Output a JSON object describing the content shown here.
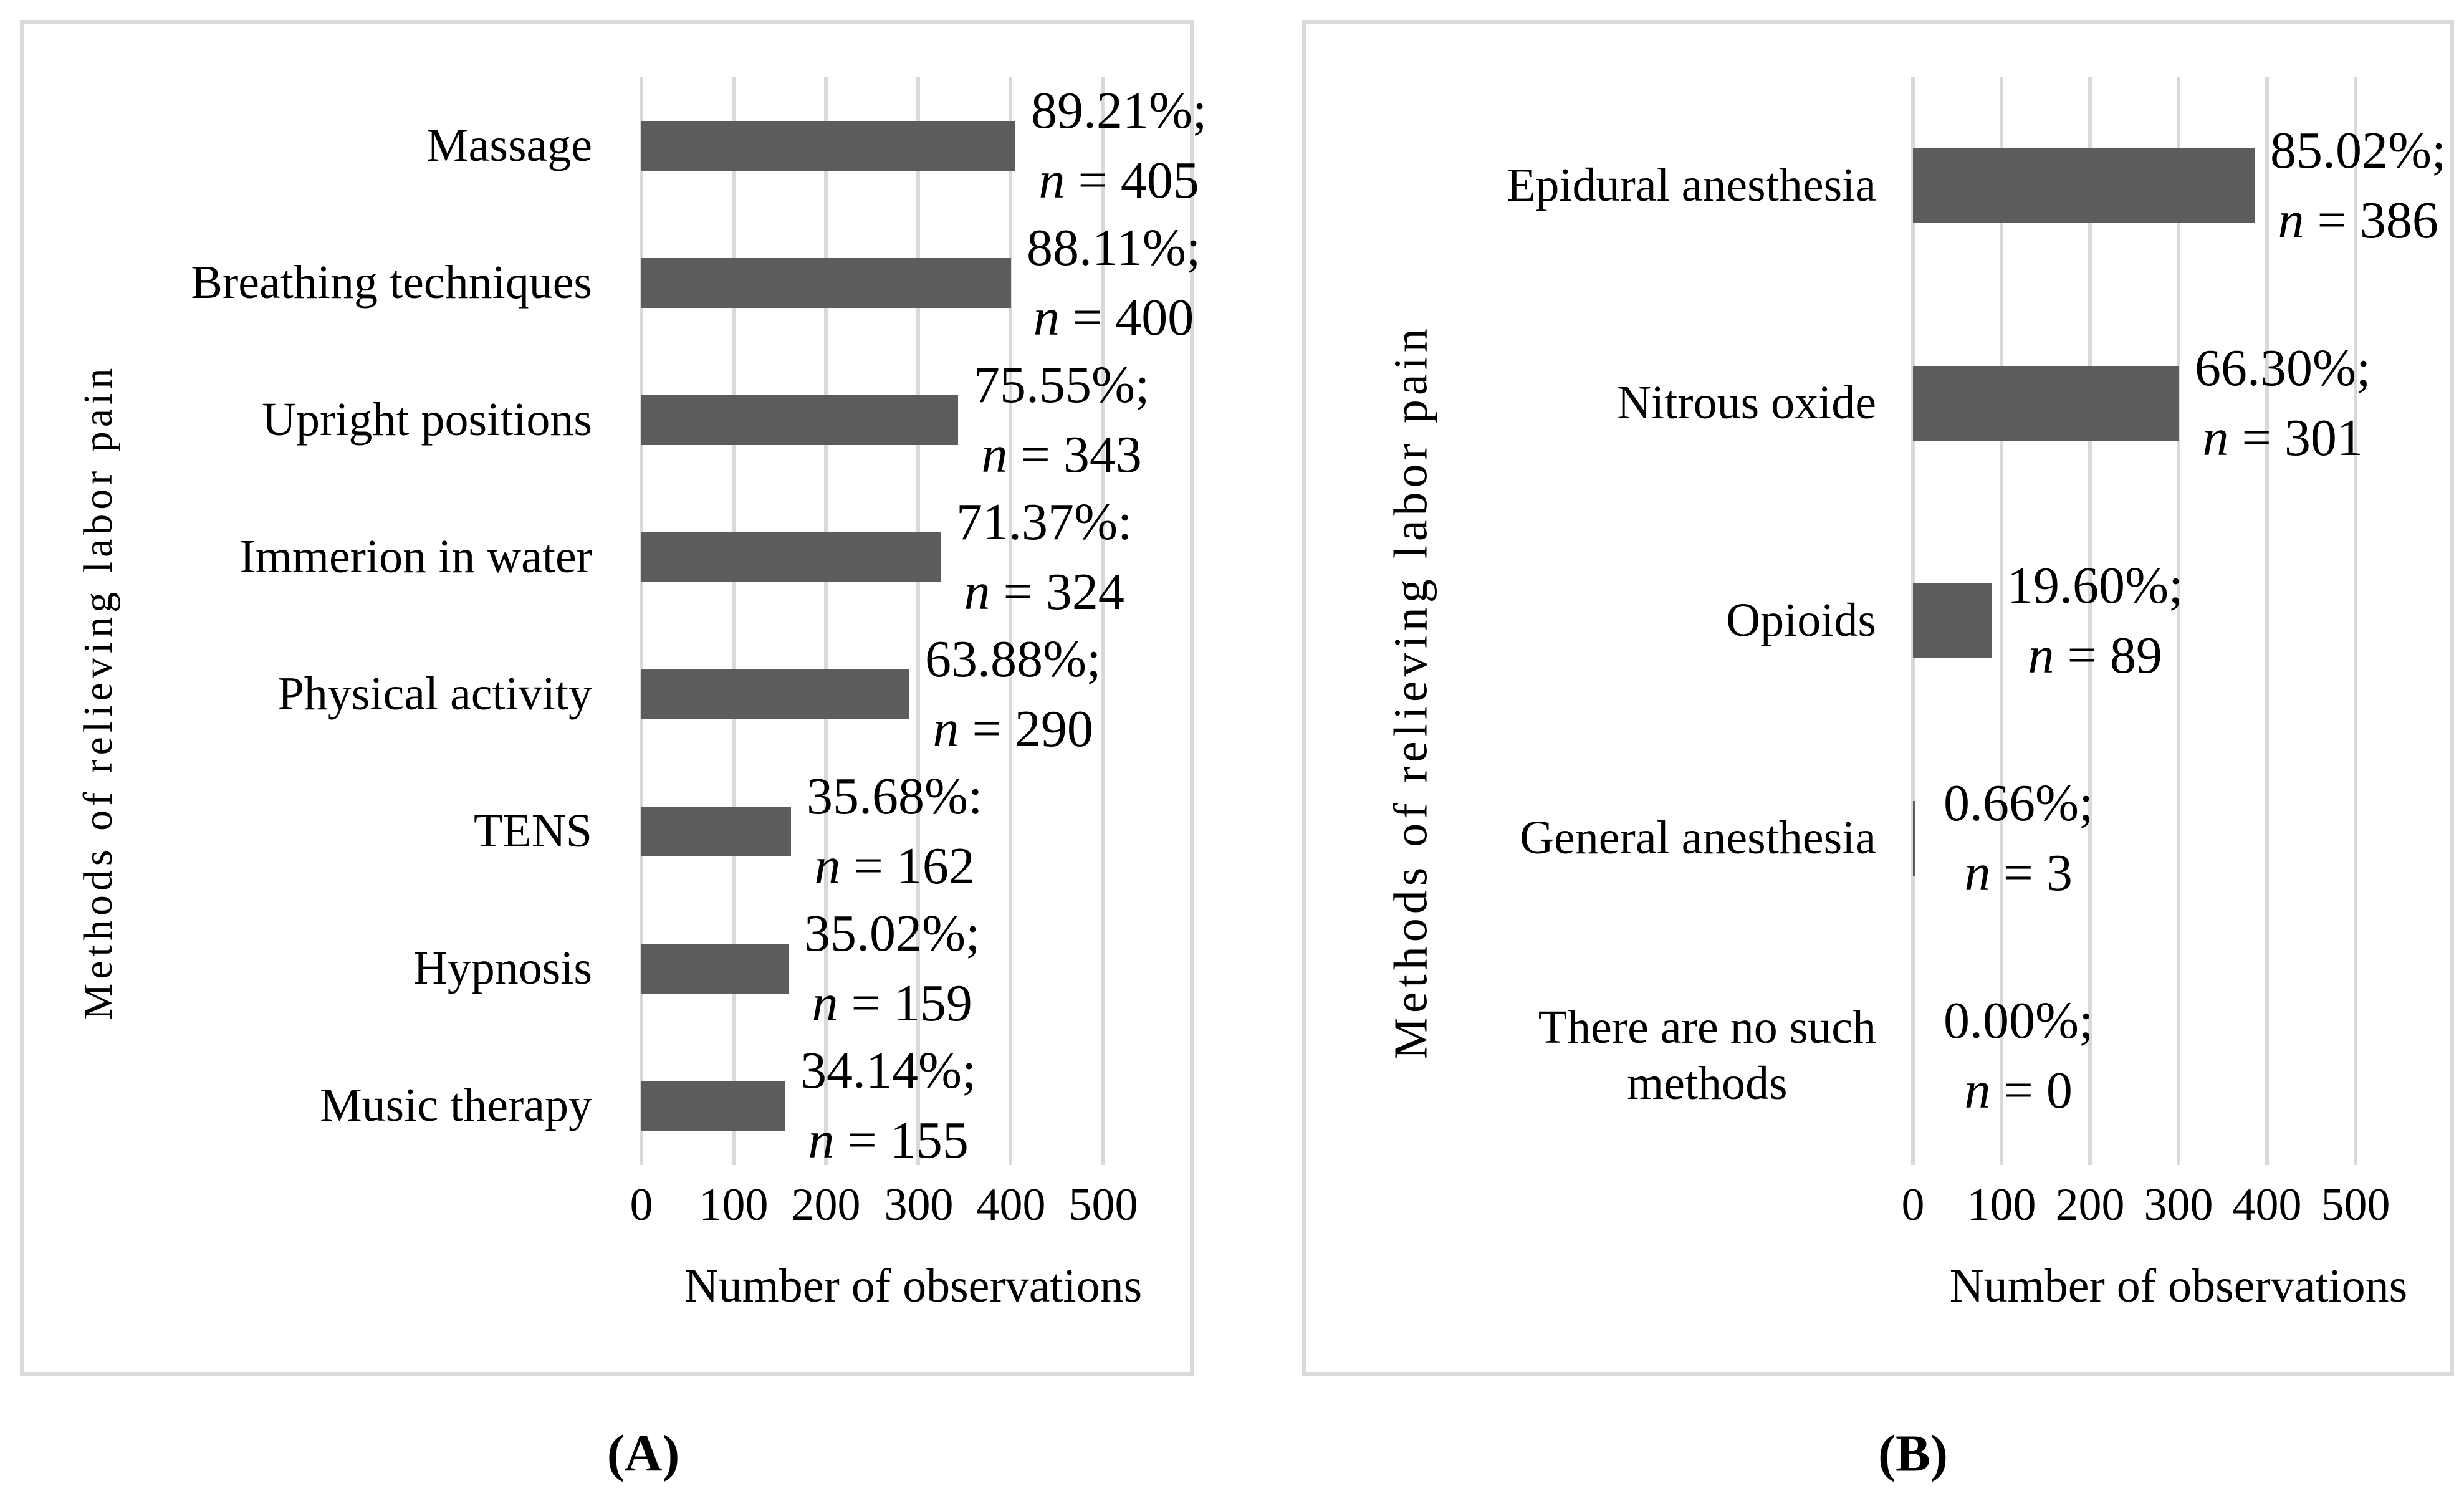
{
  "figure": {
    "captions": {
      "a": "(A)",
      "b": "(B)"
    }
  },
  "chart_data": [
    {
      "id": "A",
      "type": "bar",
      "orientation": "horizontal",
      "xlabel": "Number of observations",
      "ylabel": "Methods of relieving labor pain",
      "xlim": [
        0,
        500
      ],
      "xticks": [
        "0",
        "100",
        "200",
        "300",
        "400",
        "500"
      ],
      "grid": "vertical",
      "legend": "none",
      "bar_color": "#5c5c5c",
      "gridline_color": "#d9d9d9",
      "categories": [
        "Massage",
        "Breathing techniques",
        "Upright positions",
        "Immerion in water",
        "Physical activity",
        "TENS",
        "Hypnosis",
        "Music therapy"
      ],
      "values": [
        405,
        400,
        343,
        324,
        290,
        162,
        159,
        155
      ],
      "rows": [
        {
          "category": "Massage",
          "n": 405,
          "pct": "89.21%;",
          "n_italic": "n",
          "n_rest": " = 405"
        },
        {
          "category": "Breathing techniques",
          "n": 400,
          "pct": "88.11%;",
          "n_italic": "n",
          "n_rest": " = 400"
        },
        {
          "category": "Upright positions",
          "n": 343,
          "pct": "75.55%;",
          "n_italic": "n",
          "n_rest": " = 343"
        },
        {
          "category": "Immerion in water",
          "n": 324,
          "pct": "71.37%:",
          "n_italic": "n",
          "n_rest": " = 324"
        },
        {
          "category": "Physical activity",
          "n": 290,
          "pct": "63.88%;",
          "n_italic": "n",
          "n_rest": " = 290"
        },
        {
          "category": "TENS",
          "n": 162,
          "pct": "35.68%:",
          "n_italic": "n",
          "n_rest": " = 162"
        },
        {
          "category": "Hypnosis",
          "n": 159,
          "pct": "35.02%;",
          "n_italic": "n",
          "n_rest": " = 159"
        },
        {
          "category": "Music therapy",
          "n": 155,
          "pct": "34.14%;",
          "n_italic": "n",
          "n_rest": " = 155"
        }
      ]
    },
    {
      "id": "B",
      "type": "bar",
      "orientation": "horizontal",
      "xlabel": "Number of observations",
      "ylabel": "Methods of relieving labor pain",
      "xlim": [
        0,
        500
      ],
      "xticks": [
        "0",
        "100",
        "200",
        "300",
        "400",
        "500"
      ],
      "grid": "vertical",
      "legend": "none",
      "bar_color": "#5c5c5c",
      "gridline_color": "#d9d9d9",
      "categories": [
        "Epidural anesthesia",
        "Nitrous oxide",
        "Opioids",
        "General anesthesia",
        "There are no such methods"
      ],
      "values": [
        386,
        301,
        89,
        3,
        0
      ],
      "rows": [
        {
          "category": "Epidural anesthesia",
          "n": 386,
          "pct": "85.02%;",
          "n_italic": "n",
          "n_rest": " = 386"
        },
        {
          "category": "Nitrous oxide",
          "n": 301,
          "pct": "66.30%;",
          "n_italic": "n",
          "n_rest": " = 301"
        },
        {
          "category": "Opioids",
          "n": 89,
          "pct": "19.60%;",
          "n_italic": "n",
          "n_rest": " = 89"
        },
        {
          "category": "General anesthesia",
          "n": 3,
          "pct": "0.66%;",
          "n_italic": "n",
          "n_rest": " = 3"
        },
        {
          "category": "There are no such\nmethods",
          "n": 0,
          "pct": "0.00%;",
          "n_italic": "n",
          "n_rest": " = 0"
        }
      ]
    }
  ]
}
